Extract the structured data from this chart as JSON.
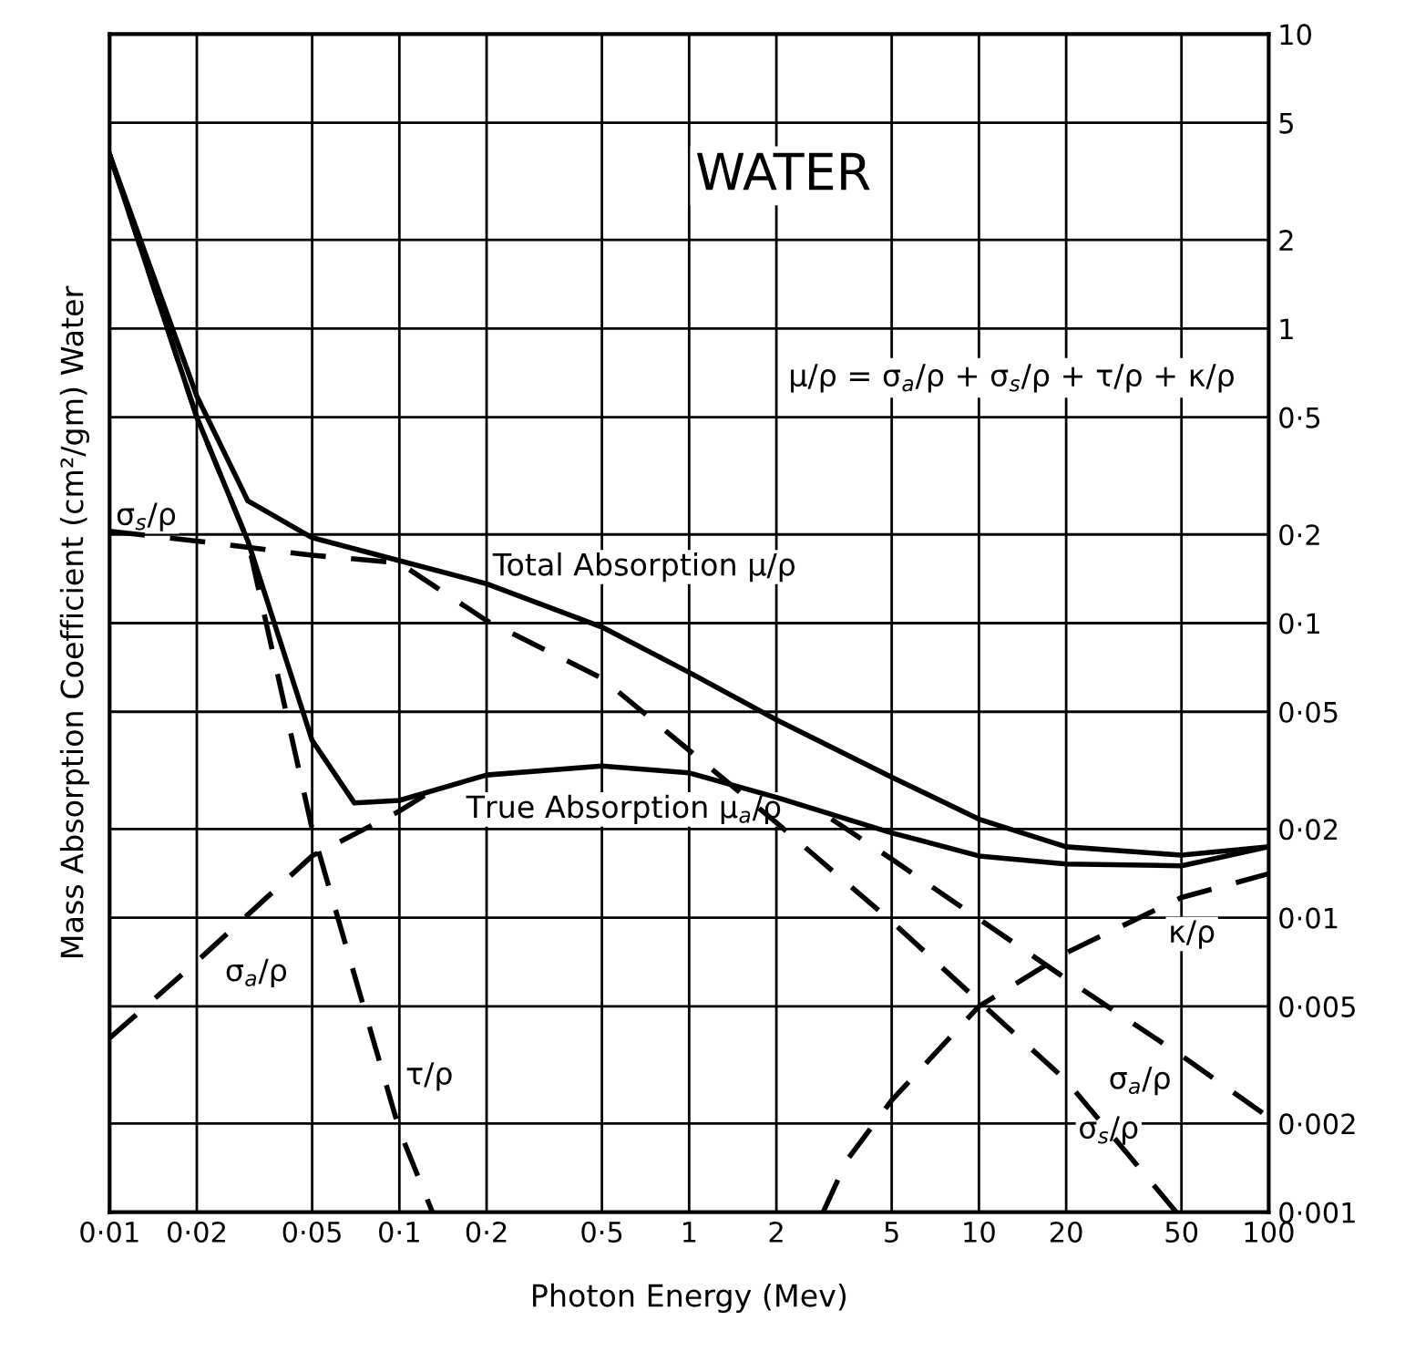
{
  "chart_data": {
    "type": "line",
    "xlabel": "Photon Energy (Mev)",
    "ylabel": "Mass Absorption Coefficient (cm²/gm) Water",
    "annotations": [
      "WATER",
      "μ/ρ = σ$_{a}$/ρ + σ$_{s}$/ρ + τ/ρ + κ/ρ"
    ],
    "log": "xy",
    "grid": true,
    "tick_labels": "xy",
    "xlim": [
      0.01,
      100
    ],
    "ylim": [
      0.001,
      10
    ],
    "xticks": [
      {
        "value": 0.01,
        "label": "0·01"
      },
      {
        "value": 0.02,
        "label": "0·02"
      },
      {
        "value": 0.05,
        "label": "0·05"
      },
      {
        "value": 0.1,
        "label": "0·1"
      },
      {
        "value": 0.2,
        "label": "0·2"
      },
      {
        "value": 0.5,
        "label": "0·5"
      },
      1,
      2,
      5,
      10,
      20,
      50,
      100
    ],
    "yticks": [
      {
        "value": 0.001,
        "label": "0·001"
      },
      {
        "value": 0.002,
        "label": "0·002"
      },
      {
        "value": 0.005,
        "label": "0·005"
      },
      {
        "value": 0.01,
        "label": "0·01"
      },
      {
        "value": 0.02,
        "label": "0·02"
      },
      {
        "value": 0.05,
        "label": "0·05"
      },
      {
        "value": 0.1,
        "label": "0·1"
      },
      {
        "value": 0.2,
        "label": "0·2"
      },
      {
        "value": 0.5,
        "label": "0·5"
      },
      1,
      2,
      5,
      10
    ],
    "series": [
      {
        "name": "Total Absorption μ/ρ",
        "color": "#000000",
        "line_style": "solid",
        "x": [
          0.01,
          0.02,
          0.03,
          0.05,
          0.1,
          0.2,
          0.5,
          1,
          2,
          5,
          10,
          20,
          50,
          100
        ],
        "values": [
          3.9,
          0.59,
          0.26,
          0.195,
          0.163,
          0.136,
          0.097,
          0.068,
          0.047,
          0.03,
          0.0216,
          0.0174,
          0.0163,
          0.0174
        ]
      },
      {
        "name": "True Absorption μ$_{a}$/ρ",
        "color": "#000000",
        "line_style": "solid",
        "x": [
          0.01,
          0.02,
          0.03,
          0.05,
          0.07,
          0.1,
          0.2,
          0.5,
          1,
          2,
          5,
          10,
          20,
          50,
          100
        ],
        "values": [
          3.9,
          0.5,
          0.19,
          0.04,
          0.0245,
          0.025,
          0.0305,
          0.0327,
          0.031,
          0.0256,
          0.0194,
          0.0162,
          0.0152,
          0.015,
          0.0174
        ]
      },
      {
        "name": "σ$_{s}$/ρ",
        "color": "#000000",
        "line_style": "dashed",
        "x": [
          0.01,
          0.02,
          0.05,
          0.1,
          0.2,
          0.5,
          1,
          2,
          5,
          10,
          20,
          48
        ],
        "values": [
          0.205,
          0.19,
          0.17,
          0.16,
          0.102,
          0.065,
          0.037,
          0.021,
          0.0097,
          0.0052,
          0.0028,
          0.001
        ]
      },
      {
        "name": "σ$_{a}$/ρ",
        "color": "#000000",
        "line_style": "dashed",
        "x": [
          0.01,
          0.02,
          0.05,
          0.1,
          0.13
        ],
        "values": [
          0.0039,
          0.0071,
          0.0162,
          0.023,
          0.027
        ]
      },
      {
        "name": "σ$_{a}$/ρ",
        "color": "#000000",
        "line_style": "dashed",
        "x": [
          3.1,
          5,
          10,
          20,
          50,
          100
        ],
        "values": [
          0.0216,
          0.0158,
          0.0099,
          0.0062,
          0.0034,
          0.0021
        ]
      },
      {
        "name": "τ/ρ",
        "color": "#000000",
        "line_style": "dashed",
        "x": [
          0.01,
          0.02,
          0.03,
          0.05,
          0.1,
          0.13
        ],
        "values": [
          3.9,
          0.5,
          0.19,
          0.02,
          0.0019,
          0.001
        ]
      },
      {
        "name": "κ/ρ",
        "color": "#000000",
        "line_style": "dashed",
        "x": [
          2.9,
          3.5,
          5,
          10,
          20,
          50,
          100
        ],
        "values": [
          0.001,
          0.0015,
          0.0024,
          0.005,
          0.0076,
          0.0117,
          0.0141
        ]
      }
    ]
  }
}
